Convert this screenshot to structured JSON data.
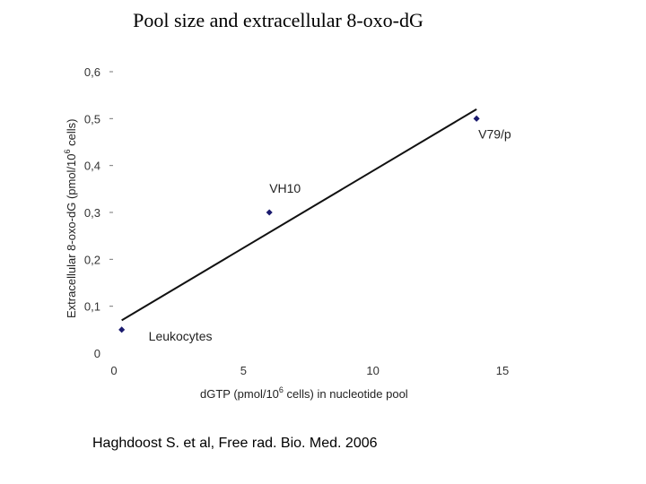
{
  "title": "Pool size and extracellular 8-oxo-dG",
  "citation": "Haghdoost S. et al, Free rad. Bio. Med. 2006",
  "chart_data": {
    "type": "scatter",
    "xlabel_main": "dGTP (pmol/10",
    "xlabel_sup": "6",
    "xlabel_rest": " cells) in nucleotide pool",
    "ylabel_main": "Extracellular 8-oxo-dG (pmol/10",
    "ylabel_sup": "6",
    "ylabel_rest": " cells)",
    "xlim": [
      0,
      15
    ],
    "ylim": [
      0,
      0.6
    ],
    "x_ticks": [
      0,
      5,
      10,
      15
    ],
    "x_tick_labels": [
      "0",
      "5",
      "10",
      "15"
    ],
    "y_ticks": [
      0,
      0.1,
      0.2,
      0.3,
      0.4,
      0.5,
      0.6
    ],
    "y_tick_labels": [
      "0",
      "0,1",
      "0,2",
      "0,3",
      "0,4",
      "0,5",
      "0,6"
    ],
    "points": [
      {
        "label": "Leukocytes",
        "x": 0.3,
        "y": 0.05
      },
      {
        "label": "VH10",
        "x": 6,
        "y": 0.3
      },
      {
        "label": "V79/p",
        "x": 14,
        "y": 0.5
      }
    ],
    "trendline": {
      "x": [
        0.3,
        14
      ],
      "y": [
        0.07,
        0.52
      ]
    },
    "marker_color": "#1a1a6e",
    "line_color": "#111111",
    "grid": false,
    "legend": "none"
  }
}
